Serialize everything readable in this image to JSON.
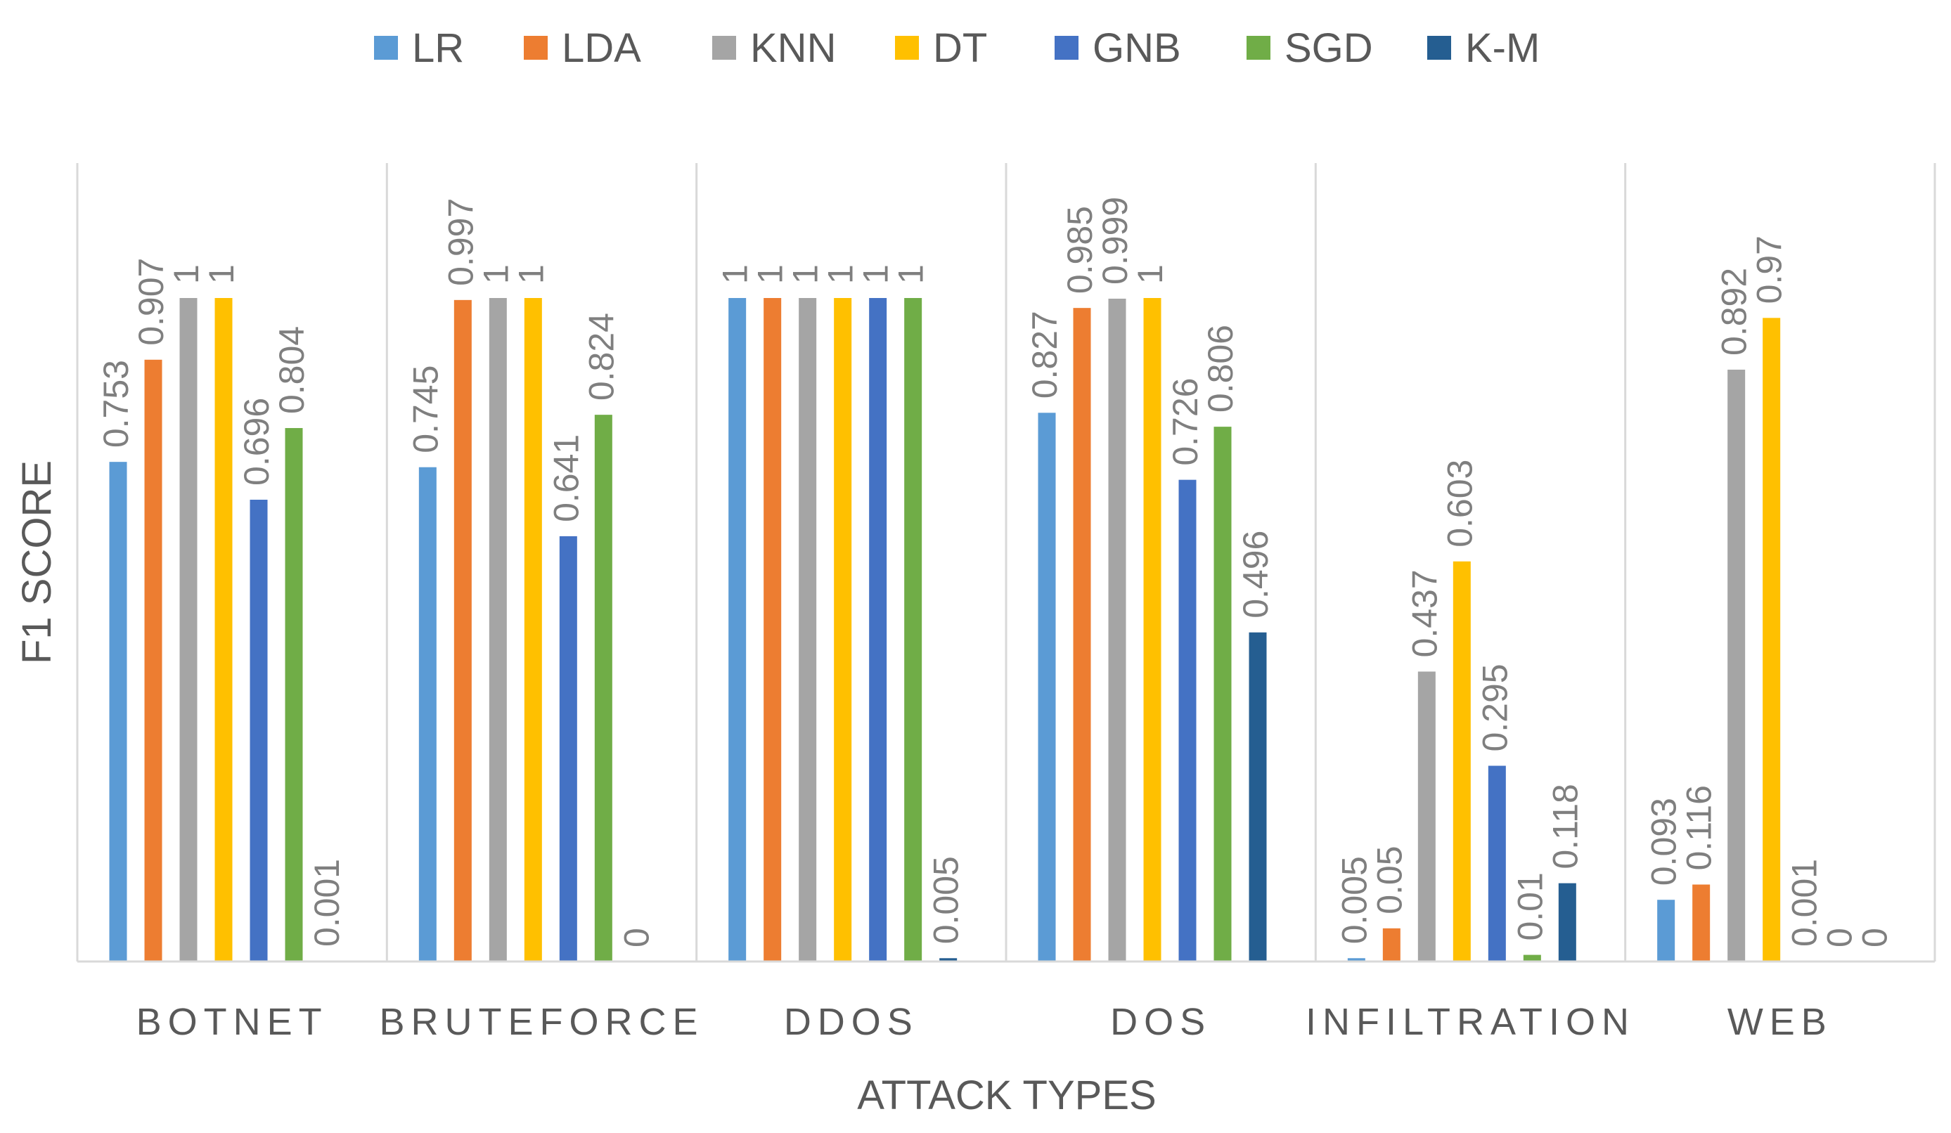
{
  "chart_data": {
    "type": "bar",
    "title": "",
    "xlabel": "ATTACK TYPES",
    "ylabel": "F1 SCORE",
    "ylim": [
      0,
      1
    ],
    "grid": false,
    "legend_position": "top-center",
    "categories": [
      "BOTNET",
      "BRUTEFORCE",
      "DDOS",
      "DOS",
      "INFILTRATION",
      "WEB"
    ],
    "series": [
      {
        "name": "LR",
        "color": "#5B9BD5",
        "values": [
          0.753,
          0.745,
          1,
          0.827,
          0.005,
          0.093
        ],
        "labels": [
          "0.753",
          "0.745",
          "1",
          "0.827",
          "0.005",
          "0.093"
        ]
      },
      {
        "name": "LDA",
        "color": "#ED7D31",
        "values": [
          0.907,
          0.997,
          1,
          0.985,
          0.05,
          0.116
        ],
        "labels": [
          "0.907",
          "0.997",
          "1",
          "0.985",
          "0.05",
          "0.116"
        ]
      },
      {
        "name": "KNN",
        "color": "#A5A5A5",
        "values": [
          1,
          1,
          1,
          0.999,
          0.437,
          0.892
        ],
        "labels": [
          "1",
          "1",
          "1",
          "0.999",
          "0.437",
          "0.892"
        ]
      },
      {
        "name": "DT",
        "color": "#FFC000",
        "values": [
          1,
          1,
          1,
          1,
          0.603,
          0.97
        ],
        "labels": [
          "1",
          "1",
          "1",
          "1",
          "0.603",
          "0.97"
        ]
      },
      {
        "name": "GNB",
        "color": "#4472C4",
        "values": [
          0.696,
          0.641,
          1,
          0.726,
          0.295,
          0.001
        ],
        "labels": [
          "0.696",
          "0.641",
          "1",
          "0.726",
          "0.295",
          "0.001"
        ]
      },
      {
        "name": "SGD",
        "color": "#70AD47",
        "values": [
          0.804,
          0.824,
          1,
          0.806,
          0.01,
          0
        ],
        "labels": [
          "0.804",
          "0.824",
          "1",
          "0.806",
          "0.01",
          "0"
        ]
      },
      {
        "name": "K-M",
        "color": "#255E91",
        "values": [
          0.001,
          0,
          0.005,
          0.496,
          0.118,
          0
        ],
        "labels": [
          "0.001",
          "0",
          "0.005",
          "0.496",
          "0.118",
          "0"
        ]
      }
    ]
  }
}
